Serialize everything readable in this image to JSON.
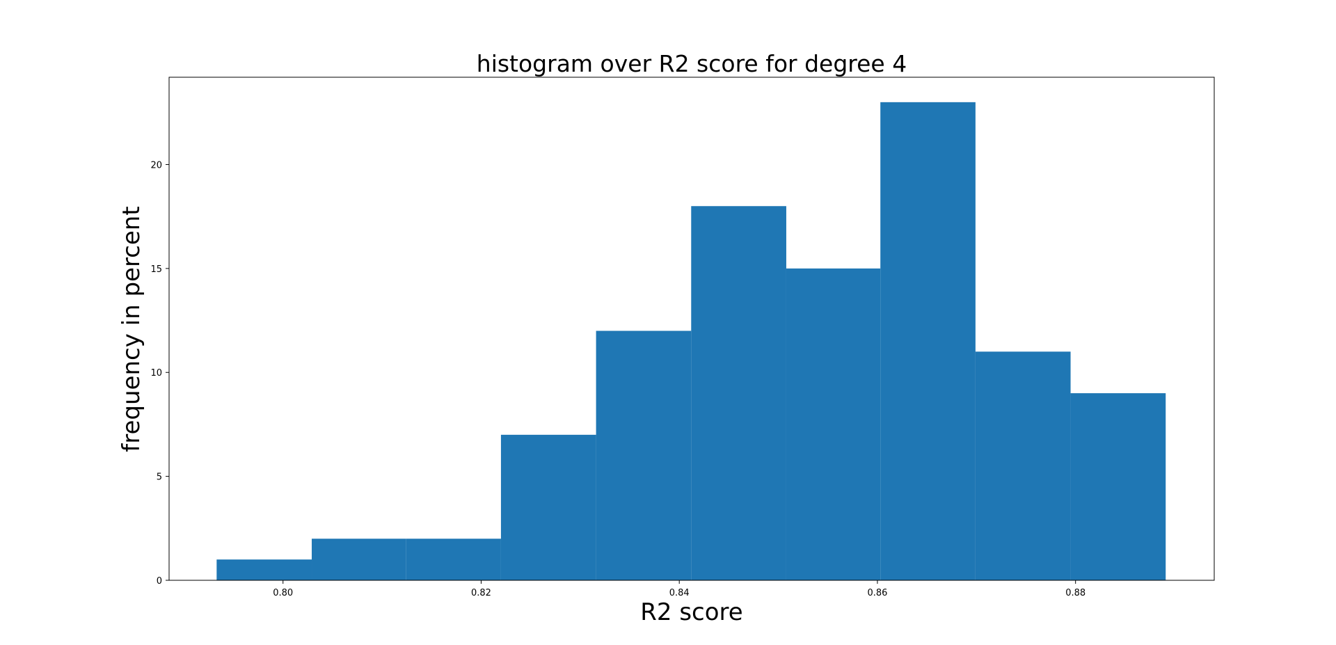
{
  "chart_data": {
    "type": "bar",
    "title": "histogram over R2 score for degree 4",
    "xlabel": "R2 score",
    "ylabel": "frequency in percent",
    "xlim": [
      0.7885,
      0.894
    ],
    "ylim": [
      0,
      24.2
    ],
    "grid": false,
    "bar_color": "#1f77b4",
    "bins": [
      {
        "x0": 0.7933,
        "x1": 0.8029,
        "value": 1
      },
      {
        "x0": 0.8029,
        "x1": 0.8124,
        "value": 2
      },
      {
        "x0": 0.8124,
        "x1": 0.822,
        "value": 2
      },
      {
        "x0": 0.822,
        "x1": 0.8316,
        "value": 7
      },
      {
        "x0": 0.8316,
        "x1": 0.8412,
        "value": 12
      },
      {
        "x0": 0.8412,
        "x1": 0.8508,
        "value": 18
      },
      {
        "x0": 0.8508,
        "x1": 0.8603,
        "value": 15
      },
      {
        "x0": 0.8603,
        "x1": 0.8699,
        "value": 23
      },
      {
        "x0": 0.8699,
        "x1": 0.8795,
        "value": 11
      },
      {
        "x0": 0.8795,
        "x1": 0.8891,
        "value": 9
      }
    ],
    "xticks": [
      {
        "value": 0.8,
        "label": "0.80"
      },
      {
        "value": 0.82,
        "label": "0.82"
      },
      {
        "value": 0.84,
        "label": "0.84"
      },
      {
        "value": 0.86,
        "label": "0.86"
      },
      {
        "value": 0.88,
        "label": "0.88"
      }
    ],
    "yticks": [
      {
        "value": 0,
        "label": "0"
      },
      {
        "value": 5,
        "label": "5"
      },
      {
        "value": 10,
        "label": "10"
      },
      {
        "value": 15,
        "label": "15"
      },
      {
        "value": 20,
        "label": "20"
      }
    ]
  }
}
